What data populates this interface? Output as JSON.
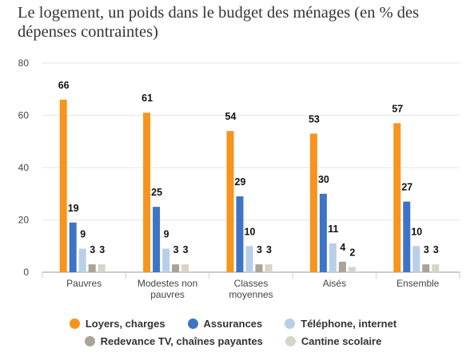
{
  "title": "Le logement, un poids dans le budget des ménages (en % des dépenses contraintes)",
  "chart_data": {
    "type": "bar",
    "title": "Le logement, un poids dans le budget des ménages (en % des dépenses contraintes)",
    "categories": [
      [
        "Pauvres"
      ],
      [
        "Modestes non",
        "pauvres"
      ],
      [
        "Classes",
        "moyennes"
      ],
      [
        "Aisés"
      ],
      [
        "Ensemble"
      ]
    ],
    "series": [
      {
        "name": "Loyers, charges",
        "color": "#f7941d",
        "values": [
          66,
          61,
          54,
          53,
          57
        ]
      },
      {
        "name": "Assurances",
        "color": "#3e74c4",
        "values": [
          19,
          25,
          29,
          30,
          27
        ]
      },
      {
        "name": "Téléphone, internet",
        "color": "#b9cfe8",
        "values": [
          9,
          9,
          10,
          11,
          10
        ]
      },
      {
        "name": "Redevance TV, chaînes payantes",
        "color": "#aaa398",
        "values": [
          3,
          3,
          3,
          4,
          3
        ]
      },
      {
        "name": "Cantine scolaire",
        "color": "#d7d4c8",
        "values": [
          3,
          3,
          3,
          2,
          3
        ]
      }
    ],
    "yticks": [
      0,
      20,
      40,
      60,
      80
    ],
    "ylim": [
      0,
      80
    ],
    "xlabel": "",
    "ylabel": "",
    "grid": true,
    "legend_position": "bottom"
  },
  "legend": {
    "rows": [
      [
        {
          "label": "Loyers, charges",
          "color": "#f7941d"
        },
        {
          "label": "Assurances",
          "color": "#3e74c4"
        },
        {
          "label": "Téléphone, internet",
          "color": "#b9cfe8"
        }
      ],
      [
        {
          "label": "Redevance TV, chaînes payantes",
          "color": "#aaa398"
        },
        {
          "label": "Cantine scolaire",
          "color": "#d7d4c8"
        }
      ]
    ]
  }
}
